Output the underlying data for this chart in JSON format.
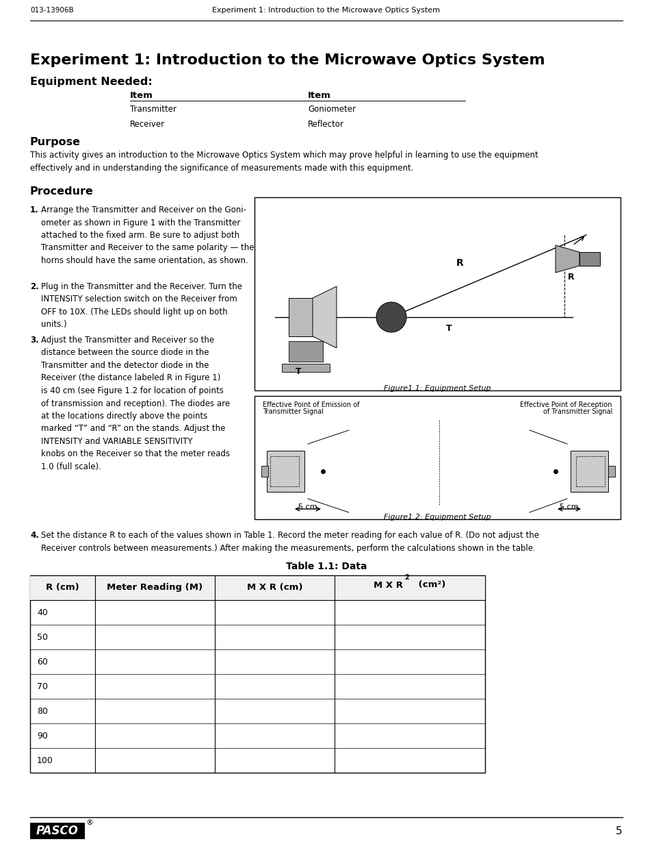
{
  "header_left": "013-13906B",
  "header_right": "Experiment 1: Introduction to the Microwave Optics System",
  "main_title": "Experiment 1: Introduction to the Microwave Optics System",
  "section1_title": "Equipment Needed:",
  "table_col_headers": [
    "Item",
    "Item"
  ],
  "table_rows": [
    [
      "Transmitter",
      "Goniometer"
    ],
    [
      "Receiver",
      "Reflector"
    ]
  ],
  "section2_title": "Purpose",
  "purpose_text": "This activity gives an introduction to the Microwave Optics System which may prove helpful in learning to use the equipment\neffectively and in understanding the significance of measurements made with this equipment.",
  "section3_title": "Procedure",
  "step1": "Arrange the Transmitter and Receiver on the Goni-\nometer as shown in Figure 1 with the Transmitter\nattached to the fixed arm. Be sure to adjust both\nTransmitter and Receiver to the same polarity — the\nhorns should have the same orientation, as shown.",
  "step2": "Plug in the Transmitter and the Receiver. Turn the\nINTENSITY selection switch on the Receiver from\nOFF to 10X. (The LEDs should light up on both\nunits.)",
  "step3": "Adjust the Transmitter and Receiver so the\ndistance between the source diode in the\nTransmitter and the detector diode in the\nReceiver (the distance labeled R in Figure 1)\nis 40 cm (see Figure 1.2 for location of points\nof transmission and reception). The diodes are\nat the locations directly above the points\nmarked “T” and “R” on the stands. Adjust the\nINTENSITY and VARIABLE SENSITIVITY\nknobs on the Receiver so that the meter reads\n1.0 (full scale).",
  "step4_line1": "Set the distance ",
  "step4_bold": "R",
  "step4_line2": " to each of the values shown in Table 1. Record the meter reading for each value of ",
  "step4_bold2": "R",
  "step4_line3": ". (Do not adjust the",
  "step4_line4": "Receiver controls between measurements.) After making the measurements, perform the calculations shown in the table.",
  "fig1_caption": "Figure1.1: Equipment Setup",
  "fig2_caption": "Figure1.2: Equipment Setup",
  "fig2_left_label1": "Effective Point of Emission of",
  "fig2_left_label2": "Transmitter Signal",
  "fig2_right_label1": "Effective Point of Reception",
  "fig2_right_label2": "of Transmitter Signal",
  "fig2_dist": "5 cm",
  "table_title": "Table 1.1: Data",
  "data_table_rows": [
    "40",
    "50",
    "60",
    "70",
    "80",
    "90",
    "100"
  ],
  "footer_page": "5",
  "bg_color": "#ffffff"
}
